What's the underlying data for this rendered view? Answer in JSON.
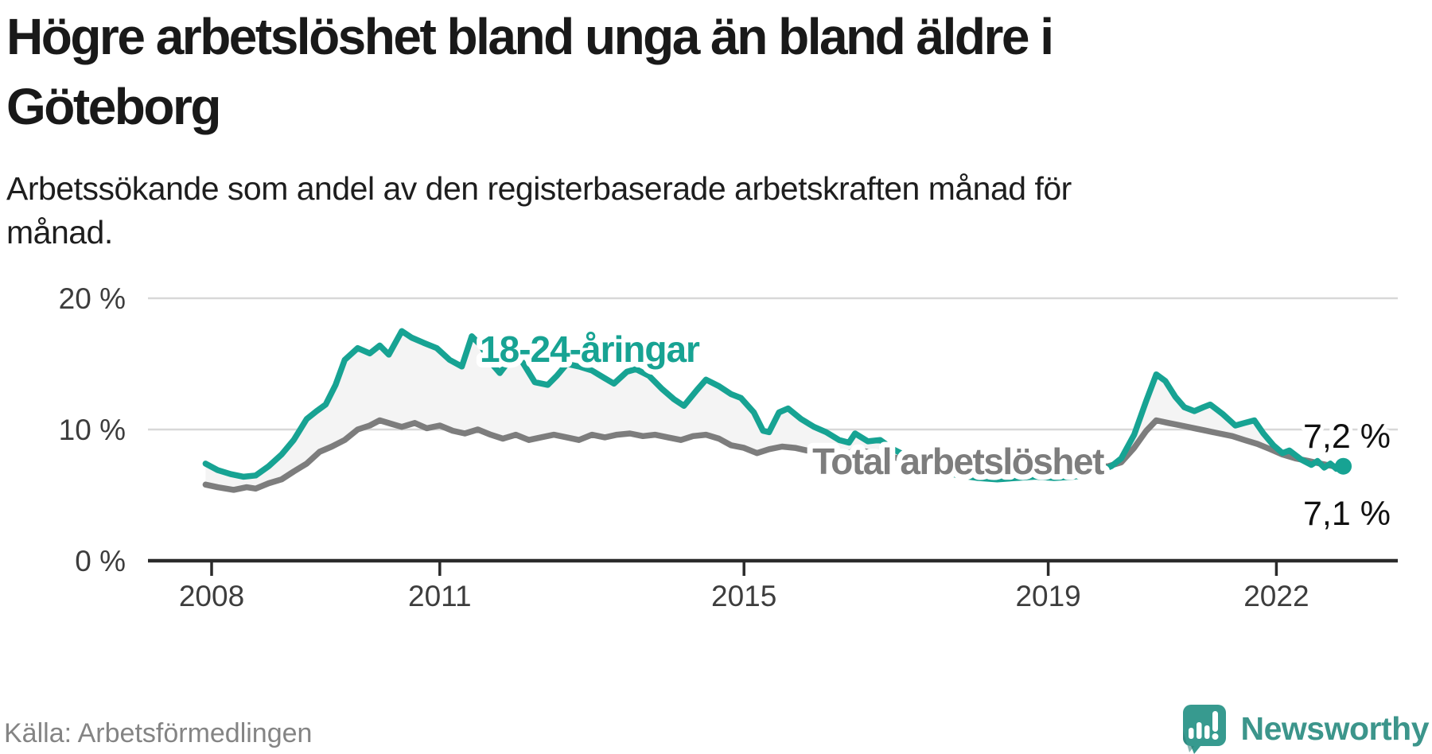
{
  "header": {
    "title_lines": [
      "Högre arbetslöshet bland unga än bland äldre i",
      "Göteborg"
    ],
    "subtitle_lines": [
      "Arbetssökande som andel av den registerbaserade arbetskraften månad för",
      "månad."
    ]
  },
  "footer": {
    "source": "Källa: Arbetsförmedlingen",
    "brand_name": "Newsworthy"
  },
  "colors": {
    "youth": "#17a393",
    "total": "#7d7d7d",
    "axis": "#2b2b2b",
    "grid": "#d8d8d8",
    "fill_between": "#f4f4f4",
    "tick_text": "#3d3d3d",
    "end_label_text": "#111111",
    "brand_teal": "#3c958b",
    "bubble_teal": "#379a8f",
    "bubble_dark": "#2b7e76"
  },
  "chart_data": {
    "type": "line",
    "title": "Högre arbetslöshet bland unga än bland äldre i Göteborg",
    "subtitle": "Arbetssökande som andel av den registerbaserade arbetskraften månad för månad.",
    "unit": "%",
    "grid": "horizontal-only",
    "xlim": [
      2007.16,
      2023.62
    ],
    "ylim": [
      0,
      21.8
    ],
    "x_ticks": [
      {
        "value": 2008,
        "label": "2008"
      },
      {
        "value": 2011,
        "label": "2011"
      },
      {
        "value": 2015,
        "label": "2015"
      },
      {
        "value": 2019,
        "label": "2019"
      },
      {
        "value": 2022,
        "label": "2022"
      }
    ],
    "y_ticks": [
      {
        "value": 0,
        "label": "0 %"
      },
      {
        "value": 10,
        "label": "10 %"
      },
      {
        "value": 20,
        "label": "20 %"
      }
    ],
    "series": [
      {
        "name": "18-24-åringar",
        "color": "#17a393",
        "end_label": "7,2 %",
        "end_value": 7.2,
        "points": [
          [
            2007.92,
            7.4
          ],
          [
            2008.08,
            6.9
          ],
          [
            2008.25,
            6.6
          ],
          [
            2008.42,
            6.4
          ],
          [
            2008.58,
            6.5
          ],
          [
            2008.75,
            7.2
          ],
          [
            2008.92,
            8.1
          ],
          [
            2009.08,
            9.2
          ],
          [
            2009.25,
            10.8
          ],
          [
            2009.38,
            11.4
          ],
          [
            2009.5,
            11.9
          ],
          [
            2009.63,
            13.4
          ],
          [
            2009.75,
            15.3
          ],
          [
            2009.92,
            16.2
          ],
          [
            2010.08,
            15.8
          ],
          [
            2010.21,
            16.4
          ],
          [
            2010.33,
            15.7
          ],
          [
            2010.5,
            17.5
          ],
          [
            2010.63,
            17.0
          ],
          [
            2010.79,
            16.6
          ],
          [
            2010.96,
            16.2
          ],
          [
            2011.13,
            15.3
          ],
          [
            2011.29,
            14.8
          ],
          [
            2011.42,
            17.1
          ],
          [
            2011.54,
            16.4
          ],
          [
            2011.67,
            15.1
          ],
          [
            2011.79,
            14.3
          ],
          [
            2011.92,
            15.3
          ],
          [
            2012.08,
            15.2
          ],
          [
            2012.25,
            13.6
          ],
          [
            2012.42,
            13.4
          ],
          [
            2012.54,
            14.1
          ],
          [
            2012.67,
            15.0
          ],
          [
            2012.83,
            14.8
          ],
          [
            2013.0,
            14.5
          ],
          [
            2013.17,
            13.9
          ],
          [
            2013.29,
            13.5
          ],
          [
            2013.46,
            14.4
          ],
          [
            2013.58,
            14.6
          ],
          [
            2013.75,
            14.1
          ],
          [
            2013.92,
            13.1
          ],
          [
            2014.08,
            12.3
          ],
          [
            2014.21,
            11.8
          ],
          [
            2014.38,
            13.0
          ],
          [
            2014.5,
            13.8
          ],
          [
            2014.67,
            13.3
          ],
          [
            2014.83,
            12.7
          ],
          [
            2014.96,
            12.4
          ],
          [
            2015.13,
            11.3
          ],
          [
            2015.25,
            9.9
          ],
          [
            2015.33,
            9.8
          ],
          [
            2015.46,
            11.3
          ],
          [
            2015.58,
            11.6
          ],
          [
            2015.75,
            10.8
          ],
          [
            2015.92,
            10.2
          ],
          [
            2016.08,
            9.8
          ],
          [
            2016.25,
            9.2
          ],
          [
            2016.38,
            9.0
          ],
          [
            2016.46,
            9.7
          ],
          [
            2016.63,
            9.1
          ],
          [
            2016.79,
            9.2
          ],
          [
            2016.96,
            8.5
          ],
          [
            2017.13,
            8.0
          ],
          [
            2017.33,
            7.3
          ],
          [
            2017.58,
            6.8
          ],
          [
            2017.83,
            6.5
          ],
          [
            2018.08,
            6.3
          ],
          [
            2018.33,
            6.2
          ],
          [
            2018.58,
            6.3
          ],
          [
            2018.83,
            6.4
          ],
          [
            2019.08,
            6.3
          ],
          [
            2019.33,
            6.4
          ],
          [
            2019.58,
            6.6
          ],
          [
            2019.83,
            7.2
          ],
          [
            2019.96,
            7.8
          ],
          [
            2020.13,
            9.6
          ],
          [
            2020.29,
            12.2
          ],
          [
            2020.42,
            14.2
          ],
          [
            2020.54,
            13.7
          ],
          [
            2020.67,
            12.5
          ],
          [
            2020.79,
            11.7
          ],
          [
            2020.92,
            11.4
          ],
          [
            2021.04,
            11.7
          ],
          [
            2021.13,
            11.9
          ],
          [
            2021.29,
            11.2
          ],
          [
            2021.46,
            10.3
          ],
          [
            2021.58,
            10.5
          ],
          [
            2021.71,
            10.7
          ],
          [
            2021.83,
            9.7
          ],
          [
            2021.96,
            8.8
          ],
          [
            2022.08,
            8.2
          ],
          [
            2022.17,
            8.4
          ],
          [
            2022.33,
            7.7
          ],
          [
            2022.46,
            7.3
          ],
          [
            2022.54,
            7.6
          ],
          [
            2022.63,
            7.1
          ],
          [
            2022.71,
            7.4
          ],
          [
            2022.79,
            7.0
          ],
          [
            2022.88,
            7.2
          ]
        ]
      },
      {
        "name": "Total arbetslöshet",
        "color": "#7d7d7d",
        "end_label": "7,1 %",
        "end_value": 7.1,
        "points": [
          [
            2007.92,
            5.8
          ],
          [
            2008.08,
            5.6
          ],
          [
            2008.29,
            5.4
          ],
          [
            2008.46,
            5.6
          ],
          [
            2008.58,
            5.5
          ],
          [
            2008.75,
            5.9
          ],
          [
            2008.92,
            6.2
          ],
          [
            2009.08,
            6.8
          ],
          [
            2009.25,
            7.4
          ],
          [
            2009.42,
            8.3
          ],
          [
            2009.58,
            8.7
          ],
          [
            2009.75,
            9.2
          ],
          [
            2009.92,
            10.0
          ],
          [
            2010.08,
            10.3
          ],
          [
            2010.21,
            10.7
          ],
          [
            2010.38,
            10.4
          ],
          [
            2010.5,
            10.2
          ],
          [
            2010.67,
            10.5
          ],
          [
            2010.83,
            10.1
          ],
          [
            2011.0,
            10.3
          ],
          [
            2011.17,
            9.9
          ],
          [
            2011.33,
            9.7
          ],
          [
            2011.5,
            10.0
          ],
          [
            2011.67,
            9.6
          ],
          [
            2011.83,
            9.3
          ],
          [
            2012.0,
            9.6
          ],
          [
            2012.17,
            9.2
          ],
          [
            2012.33,
            9.4
          ],
          [
            2012.5,
            9.6
          ],
          [
            2012.67,
            9.4
          ],
          [
            2012.83,
            9.2
          ],
          [
            2013.0,
            9.6
          ],
          [
            2013.17,
            9.4
          ],
          [
            2013.33,
            9.6
          ],
          [
            2013.5,
            9.7
          ],
          [
            2013.67,
            9.5
          ],
          [
            2013.83,
            9.6
          ],
          [
            2014.0,
            9.4
          ],
          [
            2014.17,
            9.2
          ],
          [
            2014.33,
            9.5
          ],
          [
            2014.5,
            9.6
          ],
          [
            2014.67,
            9.3
          ],
          [
            2014.83,
            8.8
          ],
          [
            2015.0,
            8.6
          ],
          [
            2015.17,
            8.2
          ],
          [
            2015.33,
            8.5
          ],
          [
            2015.5,
            8.7
          ],
          [
            2015.67,
            8.6
          ],
          [
            2015.83,
            8.4
          ],
          [
            2016.0,
            8.6
          ],
          [
            2016.17,
            8.4
          ],
          [
            2016.33,
            8.2
          ],
          [
            2016.54,
            8.4
          ],
          [
            2016.79,
            8.1
          ],
          [
            2017.04,
            7.8
          ],
          [
            2017.29,
            7.5
          ],
          [
            2017.54,
            7.3
          ],
          [
            2017.79,
            7.1
          ],
          [
            2018.04,
            7.0
          ],
          [
            2018.29,
            6.9
          ],
          [
            2018.54,
            6.8
          ],
          [
            2018.79,
            6.9
          ],
          [
            2019.04,
            7.0
          ],
          [
            2019.29,
            7.0
          ],
          [
            2019.54,
            7.1
          ],
          [
            2019.79,
            7.2
          ],
          [
            2019.96,
            7.5
          ],
          [
            2020.13,
            8.6
          ],
          [
            2020.29,
            9.9
          ],
          [
            2020.42,
            10.7
          ],
          [
            2020.58,
            10.5
          ],
          [
            2020.75,
            10.3
          ],
          [
            2020.92,
            10.1
          ],
          [
            2021.08,
            9.9
          ],
          [
            2021.25,
            9.7
          ],
          [
            2021.42,
            9.5
          ],
          [
            2021.58,
            9.2
          ],
          [
            2021.75,
            8.9
          ],
          [
            2021.92,
            8.5
          ],
          [
            2022.08,
            8.1
          ],
          [
            2022.25,
            7.8
          ],
          [
            2022.42,
            7.6
          ],
          [
            2022.58,
            7.4
          ],
          [
            2022.75,
            7.2
          ],
          [
            2022.88,
            7.1
          ]
        ]
      }
    ],
    "annotations": {
      "youth_label": "18-24-åringar",
      "total_label": "Total arbetslöshet",
      "end_label_top": "7,2 %",
      "end_label_bottom": "7,1 %"
    },
    "legend_position": "inline-labels"
  }
}
